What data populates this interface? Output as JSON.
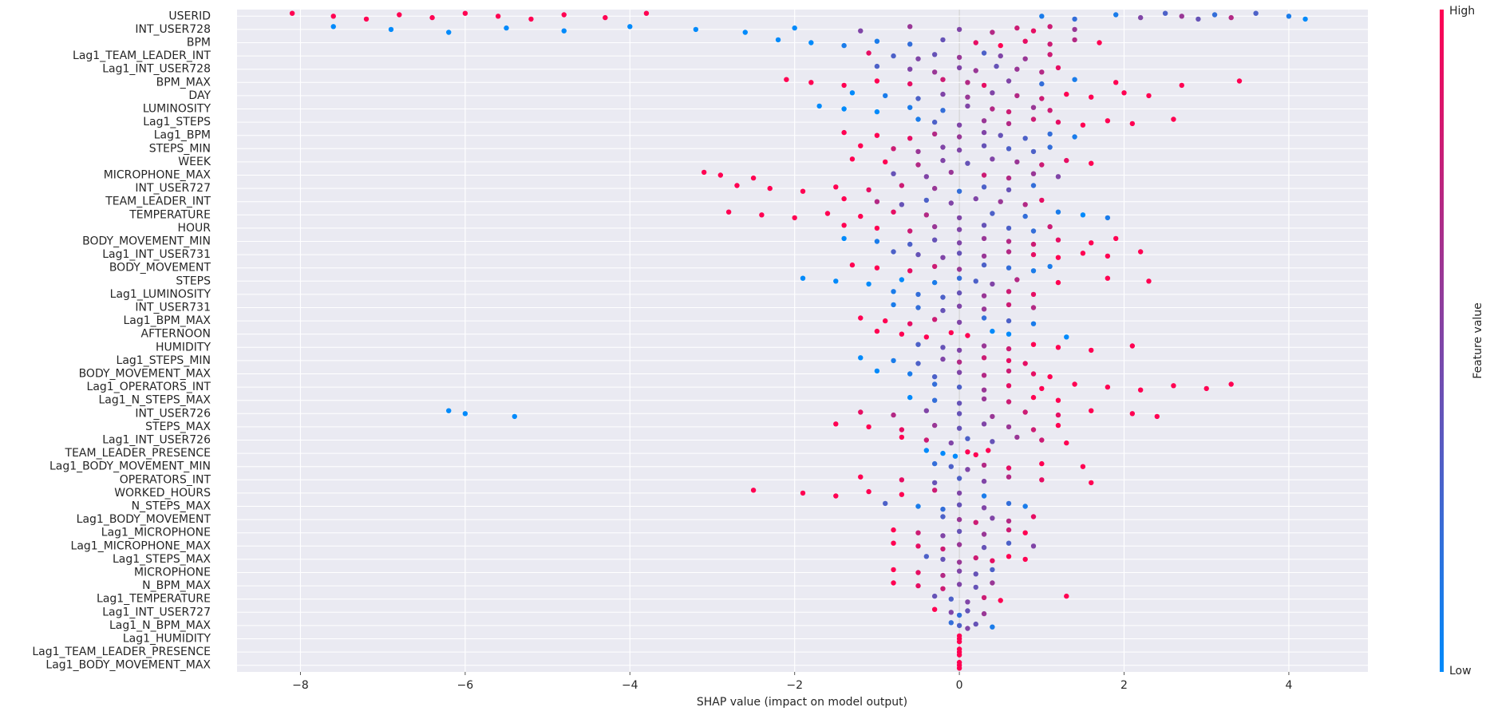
{
  "chart_data": {
    "type": "beeswarm",
    "xlabel": "SHAP value (impact on model output)",
    "xlim": [
      -8.77,
      4.96
    ],
    "xticks": [
      {
        "value": -8,
        "label": "−8"
      },
      {
        "value": -6,
        "label": "−6"
      },
      {
        "value": -4,
        "label": "−4"
      },
      {
        "value": -2,
        "label": "−2"
      },
      0,
      2,
      4
    ],
    "grid": true,
    "colorbar": {
      "label": "Feature value",
      "high": "High",
      "low": "Low",
      "colors": [
        "#008afb",
        "#ff0052"
      ]
    },
    "series": [
      {
        "name": "USERID",
        "values": [
          -8.1,
          -7.6,
          -7.2,
          -6.8,
          -6.4,
          -6.0,
          -5.6,
          -5.2,
          -4.8,
          -4.3,
          -3.8,
          1.0,
          1.4,
          1.9,
          2.2,
          2.5,
          2.7,
          2.9,
          3.1,
          3.3,
          3.6,
          4.0,
          4.2
        ],
        "feature_values": [
          1,
          1,
          1,
          1,
          1,
          1,
          1,
          1,
          1,
          1,
          1,
          0.1,
          0.2,
          0.1,
          0.5,
          0.3,
          0.6,
          0.4,
          0.2,
          0.7,
          0.3,
          0.1,
          0
        ]
      },
      {
        "name": "INT_USER728",
        "values": [
          -7.6,
          -6.9,
          -6.2,
          -5.5,
          -4.8,
          -4.0,
          -3.2,
          -2.6,
          -2.0,
          -1.2,
          -0.6,
          0,
          0.4,
          0.7,
          0.9,
          1.1,
          1.4
        ],
        "feature_values": [
          0,
          0,
          0,
          0,
          0,
          0,
          0,
          0,
          0,
          0.5,
          0.6,
          0.5,
          0.7,
          0.8,
          0.9,
          0.8,
          0.6
        ]
      },
      {
        "name": "BPM",
        "values": [
          -2.2,
          -1.8,
          -1.4,
          -1.0,
          -0.6,
          -0.2,
          0.2,
          0.5,
          0.8,
          1.1,
          1.4,
          1.7
        ],
        "feature_values": [
          0,
          0,
          0.1,
          0.1,
          0.2,
          0.4,
          0.9,
          1,
          0.9,
          0.8,
          0.7,
          1
        ]
      },
      {
        "name": "Lag1_TEAM_LEADER_INT",
        "values": [
          -1.1,
          -0.8,
          -0.5,
          -0.3,
          0,
          0.3,
          0.5,
          0.8,
          1.1
        ],
        "feature_values": [
          0.9,
          0.3,
          0.5,
          0.4,
          0.6,
          0.3,
          0.5,
          0.6,
          0.8
        ]
      },
      {
        "name": "Lag1_INT_USER728",
        "values": [
          -1.0,
          -0.6,
          -0.3,
          0,
          0.2,
          0.45,
          0.7,
          1.0,
          1.2
        ],
        "feature_values": [
          0.3,
          0.5,
          0.6,
          0.5,
          0.6,
          0.4,
          0.6,
          0.7,
          0.9
        ]
      },
      {
        "name": "BPM_MAX",
        "values": [
          -2.1,
          -1.8,
          -1.4,
          -1.0,
          -0.6,
          -0.2,
          0.1,
          0.3,
          0.6,
          1.0,
          1.4,
          1.9,
          2.7,
          3.4
        ],
        "feature_values": [
          1,
          1,
          1,
          1,
          0.9,
          0.8,
          0.7,
          0.9,
          0.5,
          0.2,
          0.1,
          1,
          1,
          1
        ]
      },
      {
        "name": "DAY",
        "values": [
          -1.3,
          -0.9,
          -0.5,
          -0.2,
          0.1,
          0.4,
          0.7,
          1.0,
          1.3,
          1.6,
          2.0,
          2.3
        ],
        "feature_values": [
          0,
          0.1,
          0.3,
          0.5,
          0.6,
          0.5,
          0.7,
          0.8,
          1,
          1,
          1,
          1
        ]
      },
      {
        "name": "LUMINOSITY",
        "values": [
          -1.7,
          -1.4,
          -1.0,
          -0.6,
          -0.2,
          0.1,
          0.4,
          0.6,
          0.9,
          1.1
        ],
        "feature_values": [
          0,
          0,
          0,
          0.1,
          0.2,
          0.5,
          0.7,
          0.8,
          0.6,
          0.8
        ]
      },
      {
        "name": "Lag1_STEPS",
        "values": [
          -0.5,
          -0.3,
          0,
          0.3,
          0.6,
          0.9,
          1.2,
          1.5,
          1.8,
          2.1,
          2.6
        ],
        "feature_values": [
          0.1,
          0.3,
          0.5,
          0.6,
          0.7,
          0.8,
          0.9,
          1,
          1,
          1,
          1
        ]
      },
      {
        "name": "Lag1_BPM",
        "values": [
          -1.4,
          -1.0,
          -0.6,
          -0.3,
          0,
          0.3,
          0.5,
          0.8,
          1.1,
          1.4
        ],
        "feature_values": [
          1,
          1,
          0.9,
          0.7,
          0.6,
          0.5,
          0.4,
          0.3,
          0.2,
          0.1
        ]
      },
      {
        "name": "STEPS_MIN",
        "values": [
          -1.2,
          -0.8,
          -0.5,
          -0.2,
          0,
          0.3,
          0.6,
          0.9,
          1.1
        ],
        "feature_values": [
          1,
          0.8,
          0.6,
          0.5,
          0.5,
          0.4,
          0.3,
          0.3,
          0.2
        ]
      },
      {
        "name": "WEEK",
        "values": [
          -1.3,
          -0.9,
          -0.5,
          -0.2,
          0.1,
          0.4,
          0.7,
          1.0,
          1.3,
          1.6
        ],
        "feature_values": [
          1,
          1,
          0.7,
          0.5,
          0.4,
          0.5,
          0.6,
          0.8,
          0.9,
          1
        ]
      },
      {
        "name": "MICROPHONE_MAX",
        "values": [
          -3.1,
          -2.9,
          -2.5,
          -0.8,
          -0.4,
          -0.1,
          0.3,
          0.6,
          0.9,
          1.2
        ],
        "feature_values": [
          1,
          1,
          1,
          0.4,
          0.5,
          0.6,
          0.8,
          0.7,
          0.6,
          0.5
        ]
      },
      {
        "name": "INT_USER727",
        "values": [
          -2.7,
          -2.3,
          -1.9,
          -1.5,
          -1.1,
          -0.7,
          -0.3,
          0,
          0.3,
          0.6,
          0.9
        ],
        "feature_values": [
          1,
          1,
          1,
          1,
          0.9,
          0.8,
          0.6,
          0.2,
          0.3,
          0.4,
          0.2
        ]
      },
      {
        "name": "TEAM_LEADER_INT",
        "values": [
          -1.4,
          -1.0,
          -0.7,
          -0.4,
          -0.1,
          0.2,
          0.5,
          0.8,
          1.0
        ],
        "feature_values": [
          1,
          0.7,
          0.4,
          0.3,
          0.5,
          0.5,
          0.6,
          0.7,
          0.9
        ]
      },
      {
        "name": "TEMPERATURE",
        "values": [
          -2.8,
          -2.4,
          -2.0,
          -1.6,
          -1.2,
          -0.8,
          -0.4,
          0,
          0.4,
          0.8,
          1.2,
          1.5,
          1.8
        ],
        "feature_values": [
          1,
          1,
          1,
          1,
          1,
          0.9,
          0.7,
          0.5,
          0.3,
          0.2,
          0.1,
          0,
          0.1
        ]
      },
      {
        "name": "HOUR",
        "values": [
          -1.4,
          -1.0,
          -0.6,
          -0.3,
          0,
          0.3,
          0.6,
          0.9,
          1.1
        ],
        "feature_values": [
          1,
          1,
          0.8,
          0.6,
          0.5,
          0.4,
          0.3,
          0.2,
          0.8
        ]
      },
      {
        "name": "BODY_MOVEMENT_MIN",
        "values": [
          -1.4,
          -1.0,
          -0.6,
          -0.3,
          0,
          0.3,
          0.6,
          0.9,
          1.2,
          1.6,
          1.9
        ],
        "feature_values": [
          0,
          0.1,
          0.3,
          0.4,
          0.5,
          0.6,
          0.7,
          0.8,
          0.9,
          1,
          1
        ]
      },
      {
        "name": "Lag1_INT_USER731",
        "values": [
          -0.8,
          -0.5,
          -0.2,
          0,
          0.3,
          0.6,
          0.9,
          1.2,
          1.5,
          1.8,
          2.2
        ],
        "feature_values": [
          0.3,
          0.4,
          0.5,
          0.4,
          0.6,
          0.7,
          0.9,
          1,
          1,
          1,
          1
        ]
      },
      {
        "name": "BODY_MOVEMENT",
        "values": [
          -1.3,
          -1.0,
          -0.6,
          -0.3,
          0,
          0.3,
          0.6,
          0.9,
          1.1
        ],
        "feature_values": [
          1,
          1,
          0.9,
          0.8,
          0.6,
          0.3,
          0.2,
          0.1,
          0.1
        ]
      },
      {
        "name": "STEPS",
        "values": [
          -1.9,
          -1.5,
          -1.1,
          -0.7,
          -0.3,
          0,
          0.2,
          0.4,
          0.7,
          1.2,
          1.8,
          2.3
        ],
        "feature_values": [
          0,
          0,
          0,
          0,
          0.1,
          0.2,
          0.3,
          0.5,
          0.7,
          1,
          1,
          1
        ]
      },
      {
        "name": "Lag1_LUMINOSITY",
        "values": [
          -0.8,
          -0.5,
          -0.2,
          0,
          0.3,
          0.6,
          0.9
        ],
        "feature_values": [
          0.1,
          0.2,
          0.3,
          0.4,
          0.6,
          0.8,
          0.9
        ]
      },
      {
        "name": "INT_USER731",
        "values": [
          -0.8,
          -0.5,
          -0.2,
          0,
          0.3,
          0.6,
          0.9
        ],
        "feature_values": [
          0.1,
          0.2,
          0.4,
          0.5,
          0.6,
          0.8,
          0.7
        ]
      },
      {
        "name": "Lag1_BPM_MAX",
        "values": [
          -1.2,
          -0.9,
          -0.6,
          -0.3,
          0,
          0.3,
          0.6,
          0.9
        ],
        "feature_values": [
          1,
          1,
          0.9,
          0.8,
          0.5,
          0.2,
          0.3,
          0.1
        ]
      },
      {
        "name": "AFTERNOON",
        "values": [
          -1.0,
          -0.7,
          -0.4,
          -0.1,
          0.1,
          0.4,
          0.6,
          1.3
        ],
        "feature_values": [
          1,
          1,
          1,
          1,
          1,
          0,
          0,
          0
        ]
      },
      {
        "name": "HUMIDITY",
        "values": [
          -0.5,
          -0.2,
          0,
          0.3,
          0.6,
          0.9,
          1.2,
          1.6,
          2.1
        ],
        "feature_values": [
          0.3,
          0.4,
          0.5,
          0.6,
          0.8,
          1,
          1,
          1,
          1
        ]
      },
      {
        "name": "Lag1_STEPS_MIN",
        "values": [
          -1.2,
          -0.8,
          -0.5,
          -0.2,
          0,
          0.3,
          0.6,
          0.8
        ],
        "feature_values": [
          0,
          0.1,
          0.3,
          0.5,
          0.7,
          0.8,
          0.9,
          0.9
        ]
      },
      {
        "name": "BODY_MOVEMENT_MAX",
        "values": [
          -1.0,
          -0.6,
          -0.3,
          0,
          0.3,
          0.6,
          0.9,
          1.1
        ],
        "feature_values": [
          0,
          0.1,
          0.3,
          0.5,
          0.7,
          0.8,
          0.9,
          1
        ]
      },
      {
        "name": "Lag1_OPERATORS_INT",
        "values": [
          -0.3,
          0,
          0.3,
          0.6,
          1.0,
          1.4,
          1.8,
          2.2,
          2.6,
          3.0,
          3.3
        ],
        "feature_values": [
          0.2,
          0.3,
          0.6,
          0.9,
          1,
          1,
          1,
          1,
          1,
          1,
          1
        ]
      },
      {
        "name": "Lag1_N_STEPS_MAX",
        "values": [
          -0.6,
          -0.3,
          0,
          0.3,
          0.6,
          0.9,
          1.2
        ],
        "feature_values": [
          0,
          0.2,
          0.4,
          0.6,
          0.8,
          1,
          1
        ]
      },
      {
        "name": "INT_USER726",
        "values": [
          -6.2,
          -6.0,
          -5.4,
          -1.2,
          -0.8,
          -0.4,
          0,
          0.4,
          0.8,
          1.2,
          1.6,
          2.1,
          2.4
        ],
        "feature_values": [
          0,
          0,
          0,
          0.9,
          0.7,
          0.5,
          0.4,
          0.6,
          0.8,
          0.9,
          1,
          1,
          1
        ]
      },
      {
        "name": "STEPS_MAX",
        "values": [
          -1.5,
          -1.1,
          -0.7,
          -0.3,
          0,
          0.3,
          0.6,
          0.9,
          1.2
        ],
        "feature_values": [
          1,
          1,
          0.9,
          0.6,
          0.4,
          0.5,
          0.6,
          0.8,
          1
        ]
      },
      {
        "name": "Lag1_INT_USER726",
        "values": [
          -0.7,
          -0.4,
          -0.1,
          0.1,
          0.4,
          0.7,
          1.0,
          1.3
        ],
        "feature_values": [
          1,
          0.8,
          0.5,
          0.3,
          0.4,
          0.6,
          0.8,
          1
        ]
      },
      {
        "name": "TEAM_LEADER_PRESENCE",
        "values": [
          -0.4,
          -0.2,
          -0.05,
          0.1,
          0.2,
          0.35
        ],
        "feature_values": [
          0,
          0,
          0,
          1,
          1,
          1
        ]
      },
      {
        "name": "Lag1_BODY_MOVEMENT_MIN",
        "values": [
          -0.3,
          -0.1,
          0.1,
          0.3,
          0.6,
          1.0,
          1.5
        ],
        "feature_values": [
          0.2,
          0.3,
          0.5,
          0.7,
          0.9,
          1,
          1
        ]
      },
      {
        "name": "OPERATORS_INT",
        "values": [
          -1.2,
          -0.7,
          -0.3,
          0,
          0.3,
          0.6,
          1.0,
          1.6
        ],
        "feature_values": [
          1,
          0.9,
          0.4,
          0.3,
          0.5,
          0.7,
          0.9,
          1
        ]
      },
      {
        "name": "WORKED_HOURS",
        "values": [
          -2.5,
          -1.9,
          -1.5,
          -1.1,
          -0.7,
          -0.3,
          0,
          0.3
        ],
        "feature_values": [
          1,
          1,
          1,
          1,
          1,
          0.8,
          0.5,
          0.1
        ]
      },
      {
        "name": "N_STEPS_MAX",
        "values": [
          -0.9,
          -0.5,
          -0.2,
          0,
          0.3,
          0.6,
          0.8
        ],
        "feature_values": [
          0.3,
          0.1,
          0.2,
          0.4,
          0.5,
          0.2,
          0.1
        ]
      },
      {
        "name": "Lag1_BODY_MOVEMENT",
        "values": [
          -0.2,
          0,
          0.2,
          0.4,
          0.6,
          0.9
        ],
        "feature_values": [
          0.3,
          0.6,
          0.8,
          0.5,
          0.7,
          0.9
        ]
      },
      {
        "name": "Lag1_MICROPHONE",
        "values": [
          -0.8,
          -0.5,
          -0.2,
          0,
          0.3,
          0.6,
          0.8
        ],
        "feature_values": [
          1,
          0.8,
          0.5,
          0.4,
          0.6,
          0.8,
          1
        ]
      },
      {
        "name": "Lag1_MICROPHONE_MAX",
        "values": [
          -0.8,
          -0.5,
          -0.2,
          0,
          0.3,
          0.6,
          0.9
        ],
        "feature_values": [
          1,
          0.9,
          0.8,
          0.6,
          0.4,
          0.3,
          0.5
        ]
      },
      {
        "name": "Lag1_STEPS_MAX",
        "values": [
          -0.4,
          -0.2,
          0,
          0.2,
          0.4,
          0.6,
          0.8
        ],
        "feature_values": [
          0.3,
          0.4,
          0.6,
          0.8,
          0.9,
          1,
          1
        ]
      },
      {
        "name": "MICROPHONE",
        "values": [
          -0.8,
          -0.5,
          -0.2,
          0,
          0.2,
          0.4
        ],
        "feature_values": [
          1,
          0.9,
          0.7,
          0.5,
          0.4,
          0.3
        ]
      },
      {
        "name": "N_BPM_MAX",
        "values": [
          -0.8,
          -0.5,
          -0.2,
          0,
          0.2,
          0.4
        ],
        "feature_values": [
          1,
          0.9,
          0.8,
          0.5,
          0.4,
          0.6
        ]
      },
      {
        "name": "Lag1_TEMPERATURE",
        "values": [
          -0.3,
          -0.1,
          0.1,
          0.3,
          0.5,
          1.3
        ],
        "feature_values": [
          0.4,
          0.3,
          0.5,
          0.8,
          1,
          1
        ]
      },
      {
        "name": "Lag1_INT_USER727",
        "values": [
          -0.3,
          -0.1,
          0,
          0.1,
          0.3
        ],
        "feature_values": [
          1,
          0.5,
          0.2,
          0.4,
          0.6
        ]
      },
      {
        "name": "Lag1_N_BPM_MAX",
        "values": [
          -0.1,
          0,
          0.1,
          0.2,
          0.4
        ],
        "feature_values": [
          0.2,
          0.3,
          0.5,
          0.4,
          0.1
        ]
      },
      {
        "name": "Lag1_HUMIDITY",
        "values": [
          0,
          0,
          0
        ],
        "feature_values": [
          1,
          1,
          1
        ]
      },
      {
        "name": "Lag1_TEAM_LEADER_PRESENCE",
        "values": [
          0,
          0,
          0
        ],
        "feature_values": [
          1,
          1,
          1
        ]
      },
      {
        "name": "Lag1_BODY_MOVEMENT_MAX",
        "values": [
          0,
          0,
          0
        ],
        "feature_values": [
          1,
          1,
          1
        ]
      }
    ]
  }
}
